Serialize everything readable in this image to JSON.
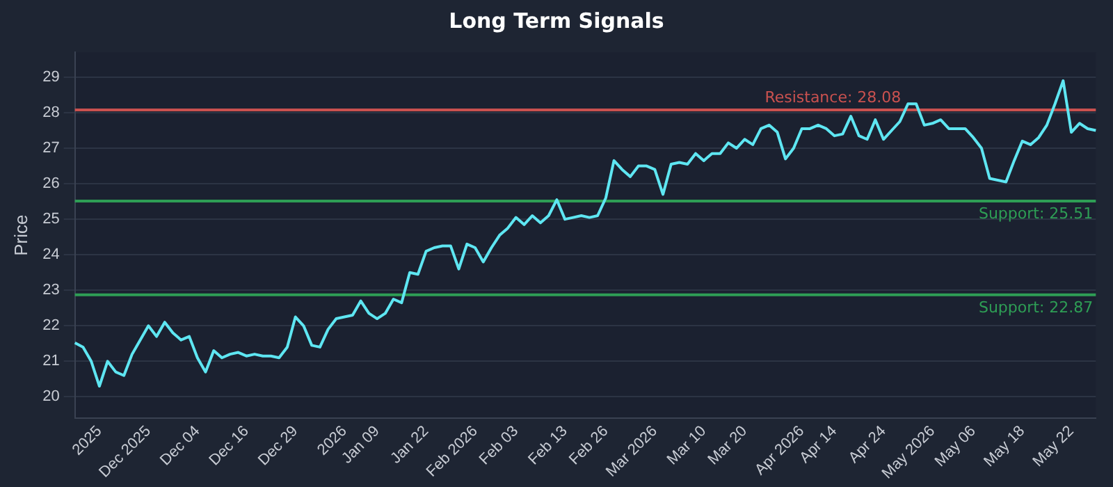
{
  "chart_data": {
    "type": "line",
    "title": "Long Term Signals",
    "ylabel": "Price",
    "categories": [
      null,
      null,
      null,
      "2025",
      null,
      null,
      null,
      null,
      null,
      "Dec 2025",
      null,
      null,
      null,
      null,
      null,
      "Dec 04",
      null,
      null,
      null,
      null,
      null,
      "Dec 16",
      null,
      null,
      null,
      null,
      null,
      "Dec 29",
      null,
      null,
      null,
      null,
      null,
      "2026",
      null,
      null,
      null,
      "Jan 09",
      null,
      null,
      null,
      null,
      null,
      "Jan 22",
      null,
      null,
      null,
      null,
      null,
      "Feb 2026",
      null,
      null,
      null,
      null,
      "Feb 03",
      null,
      null,
      null,
      null,
      null,
      "Feb 13",
      null,
      null,
      null,
      null,
      "Feb 26",
      null,
      null,
      null,
      null,
      null,
      "Mar 2026",
      null,
      null,
      null,
      null,
      null,
      "Mar 10",
      null,
      null,
      null,
      null,
      "Mar 20",
      null,
      null,
      null,
      null,
      null,
      null,
      "Apr 2026",
      null,
      null,
      null,
      "Apr 14",
      null,
      null,
      null,
      null,
      null,
      "Apr 24",
      null,
      null,
      null,
      null,
      null,
      "May 2026",
      null,
      null,
      null,
      null,
      "May 06",
      null,
      null,
      null,
      null,
      null,
      "May 18",
      null,
      null,
      null,
      null,
      null,
      "May 22",
      null,
      null,
      null
    ],
    "series": [
      {
        "color": "#5ee6f2",
        "values": [
          21.52,
          21.4,
          21.0,
          20.3,
          21.0,
          20.7,
          20.6,
          21.2,
          21.6,
          22.0,
          21.7,
          22.1,
          21.8,
          21.6,
          21.7,
          21.1,
          20.7,
          21.3,
          21.1,
          21.2,
          21.25,
          21.15,
          21.2,
          21.15,
          21.15,
          21.1,
          21.4,
          22.25,
          22.0,
          21.45,
          21.4,
          21.9,
          22.2,
          22.25,
          22.3,
          22.7,
          22.35,
          22.2,
          22.35,
          22.75,
          22.65,
          23.5,
          23.45,
          24.1,
          24.2,
          24.25,
          24.25,
          23.6,
          24.3,
          24.2,
          23.8,
          24.2,
          24.55,
          24.75,
          25.05,
          24.85,
          25.1,
          24.9,
          25.1,
          25.55,
          25.0,
          25.05,
          25.1,
          25.05,
          25.1,
          25.6,
          26.65,
          26.4,
          26.2,
          26.5,
          26.5,
          26.4,
          25.7,
          26.55,
          26.6,
          26.55,
          26.85,
          26.65,
          26.85,
          26.85,
          27.15,
          27.0,
          27.25,
          27.1,
          27.55,
          27.65,
          27.45,
          26.7,
          27.0,
          27.55,
          27.55,
          27.65,
          27.55,
          27.35,
          27.4,
          27.9,
          27.35,
          27.25,
          27.8,
          27.25,
          27.5,
          27.75,
          28.25,
          28.25,
          27.65,
          27.7,
          27.8,
          27.55,
          27.55,
          27.55,
          27.3,
          27.0,
          26.15,
          26.1,
          26.05,
          26.65,
          27.2,
          27.1,
          27.3,
          27.65,
          28.25,
          28.9,
          27.45,
          27.7,
          27.55,
          27.5
        ]
      }
    ],
    "ylim": [
      19.4,
      29.7
    ],
    "yticks": [
      20,
      21,
      22,
      23,
      24,
      25,
      26,
      27,
      28,
      29
    ],
    "grid": "y",
    "legend": false,
    "marker": "none",
    "line_style": "solid",
    "ref_lines": [
      {
        "axis": "y",
        "value": 28.08,
        "label": "Resistance: 28.08",
        "color": "#c9514f"
      },
      {
        "axis": "y",
        "value": 25.51,
        "label": "Support: 25.51",
        "color": "#2e9e55"
      },
      {
        "axis": "y",
        "value": 22.87,
        "label": "Support: 22.87",
        "color": "#2e9e55"
      }
    ]
  }
}
